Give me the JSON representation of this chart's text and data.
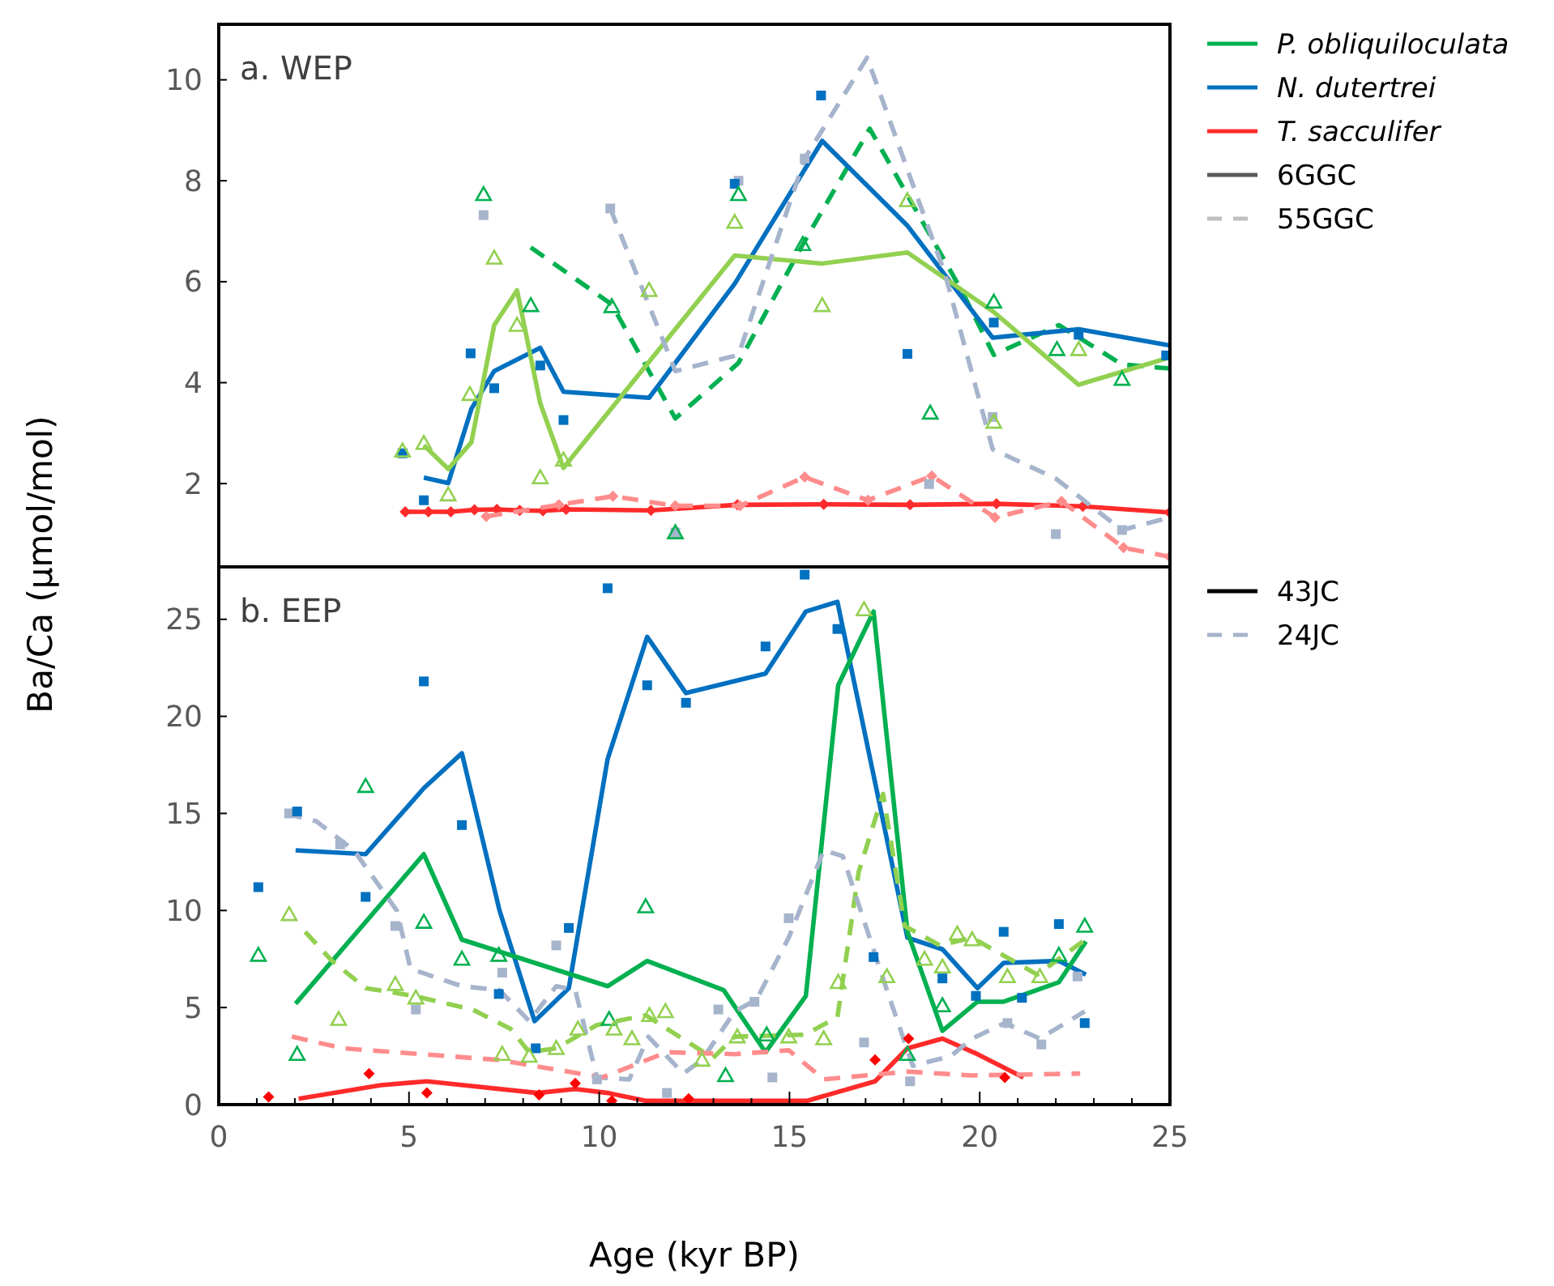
{
  "chart_data": [
    {
      "type": "line",
      "title": "a. WEP",
      "ylabel": "Ba/Ca (µmol/mol)",
      "xlim": [
        0,
        25
      ],
      "ylim": [
        0.35,
        11.1
      ],
      "yticks": [
        2,
        4,
        6,
        8,
        10
      ],
      "tick_labels": "y",
      "legend": "right",
      "annotations": [
        "6GGC",
        "55GGC"
      ],
      "series": [
        {
          "name": "P. obliquiloculata",
          "color": "#00b050",
          "line_style": "dashed",
          "x": [
            8.2,
            10.33,
            12.0,
            13.66,
            15.35,
            17.11,
            19.52,
            20.37,
            22.08,
            23.74,
            24.99
          ],
          "values": [
            6.68,
            5.55,
            3.29,
            4.39,
            6.74,
            9.03,
            5.83,
            4.55,
            5.14,
            4.36,
            4.28
          ]
        },
        {
          "name": "N. dutertrei",
          "color": "#0070c0",
          "line_style": "solid",
          "x": [
            5.39,
            6.03,
            6.64,
            7.24,
            8.45,
            9.06,
            11.31,
            13.56,
            15.86,
            18.1,
            20.34,
            22.6,
            24.99
          ],
          "values": [
            2.12,
            2.01,
            3.48,
            4.23,
            4.69,
            3.82,
            3.7,
            5.96,
            8.79,
            7.11,
            4.89,
            5.06,
            4.74
          ]
        },
        {
          "name": "T. sacculifer",
          "color": "#ff2a2a",
          "line_style": "solid",
          "marker": "diamond",
          "x": [
            4.9,
            5.51,
            6.1,
            6.72,
            7.31,
            7.91,
            8.52,
            9.13,
            11.36,
            13.63,
            15.9,
            18.17,
            20.44,
            22.71,
            24.99
          ],
          "values": [
            1.44,
            1.44,
            1.44,
            1.48,
            1.49,
            1.47,
            1.46,
            1.49,
            1.47,
            1.58,
            1.59,
            1.58,
            1.6,
            1.55,
            1.43
          ]
        },
        {
          "color": "#92d050",
          "line_style": "solid",
          "x": [
            5.39,
            6.03,
            6.64,
            7.24,
            7.84,
            8.45,
            9.06,
            13.56,
            15.86,
            18.1,
            20.37,
            22.6,
            24.99
          ],
          "values": [
            2.76,
            2.29,
            2.82,
            5.14,
            5.83,
            3.59,
            2.31,
            6.52,
            6.36,
            6.58,
            5.4,
            3.96,
            4.5
          ]
        },
        {
          "color": "#a6b4cc",
          "line_style": "dashed",
          "x": [
            10.29,
            12.0,
            13.66,
            15.4,
            17.04,
            19.09,
            20.34,
            22.0,
            23.74,
            24.99
          ],
          "values": [
            7.45,
            4.23,
            4.55,
            8.44,
            10.44,
            6.15,
            2.68,
            2.1,
            1.08,
            1.33
          ]
        },
        {
          "color": "#ff8c8c",
          "line_style": "dashed",
          "marker": "diamond",
          "x": [
            7.03,
            8.94,
            10.36,
            12.0,
            13.7,
            15.4,
            17.06,
            18.74,
            20.4,
            22.15,
            23.78,
            24.99
          ],
          "values": [
            1.35,
            1.58,
            1.75,
            1.56,
            1.56,
            2.13,
            1.67,
            2.15,
            1.33,
            1.65,
            0.73,
            0.55
          ]
        },
        {
          "type": "scatter",
          "color": "#a6b4cc",
          "marker": "square",
          "x": [
            6.96,
            10.29,
            12.0,
            13.66,
            15.4,
            18.67,
            20.34,
            22.0,
            23.74
          ],
          "values": [
            7.32,
            7.45,
            1.03,
            8.0,
            8.44,
            1.99,
            3.32,
            1.0,
            1.08
          ]
        },
        {
          "type": "scatter",
          "color": "#0070c0",
          "marker": "square",
          "x": [
            4.83,
            5.39,
            6.62,
            7.24,
            8.45,
            9.06,
            13.56,
            15.83,
            18.1,
            20.37,
            22.6,
            24.9
          ],
          "values": [
            2.6,
            1.67,
            4.58,
            3.89,
            4.34,
            3.26,
            7.94,
            9.69,
            4.57,
            5.19,
            4.95,
            4.54
          ]
        },
        {
          "type": "scatter",
          "color": "#92d050",
          "marker": "triangle",
          "x": [
            4.83,
            5.39,
            6.03,
            6.6,
            7.24,
            7.84,
            8.45,
            9.06,
            11.31,
            13.56,
            15.86,
            18.1,
            20.37,
            22.6
          ],
          "values": [
            2.65,
            2.8,
            1.78,
            3.77,
            6.47,
            5.14,
            2.12,
            2.47,
            5.83,
            7.18,
            5.53,
            7.61,
            3.22,
            4.66
          ]
        },
        {
          "type": "scatter",
          "color": "#00b050",
          "marker": "triangle",
          "x": [
            6.96,
            8.2,
            10.33,
            12.0,
            13.66,
            15.35,
            18.7,
            20.37,
            22.03,
            23.74
          ],
          "values": [
            7.73,
            5.53,
            5.51,
            1.03,
            7.73,
            6.74,
            3.4,
            5.6,
            4.66,
            4.07
          ]
        }
      ]
    },
    {
      "type": "line",
      "title": "b. EEP",
      "xlabel": "Age (kyr BP)",
      "xlim": [
        0,
        25
      ],
      "xticks": [
        0,
        {
          "value": 1,
          "label": null
        },
        {
          "value": 2,
          "label": null
        },
        {
          "value": 3,
          "label": null
        },
        {
          "value": 4,
          "label": null
        },
        5,
        {
          "value": 6,
          "label": null
        },
        {
          "value": 7,
          "label": null
        },
        {
          "value": 8,
          "label": null
        },
        {
          "value": 9,
          "label": null
        },
        10,
        {
          "value": 11,
          "label": null
        },
        {
          "value": 12,
          "label": null
        },
        {
          "value": 13,
          "label": null
        },
        {
          "value": 14,
          "label": null
        },
        15,
        {
          "value": 16,
          "label": null
        },
        {
          "value": 17,
          "label": null
        },
        {
          "value": 18,
          "label": null
        },
        {
          "value": 19,
          "label": null
        },
        20,
        {
          "value": 21,
          "label": null
        },
        {
          "value": 22,
          "label": null
        },
        {
          "value": 23,
          "label": null
        },
        {
          "value": 24,
          "label": null
        },
        25
      ],
      "ylim": [
        0,
        27.7
      ],
      "yticks": [
        0,
        5,
        10,
        15,
        20,
        25
      ],
      "annotations": [
        "43JC",
        "24JC"
      ],
      "series": [
        {
          "color": "#0070c0",
          "line_style": "solid",
          "x": [
            2.02,
            3.86,
            5.39,
            6.39,
            7.38,
            8.3,
            9.2,
            10.22,
            11.26,
            12.28,
            14.37,
            15.43,
            16.26,
            18.1,
            19.02,
            19.94,
            20.63,
            22.08,
            22.79
          ],
          "values": [
            13.1,
            12.9,
            16.3,
            18.1,
            10.0,
            4.3,
            6.0,
            17.8,
            24.1,
            21.2,
            22.2,
            25.4,
            25.9,
            8.6,
            8.0,
            6.0,
            7.3,
            7.4,
            6.7
          ]
        },
        {
          "color": "#00b050",
          "line_style": "solid",
          "x": [
            2.02,
            5.39,
            6.39,
            10.22,
            11.26,
            13.27,
            14.37,
            15.43,
            16.28,
            17.21,
            18.1,
            19.02,
            19.94,
            20.63,
            22.08,
            22.79
          ],
          "values": [
            5.2,
            12.9,
            8.5,
            6.1,
            7.4,
            5.9,
            2.7,
            5.6,
            21.6,
            25.4,
            8.9,
            3.8,
            5.3,
            5.3,
            6.3,
            8.4
          ]
        },
        {
          "color": "#ff2a2a",
          "line_style": "solid",
          "x": [
            2.1,
            4.26,
            5.47,
            8.38,
            9.37,
            10.22,
            11.22,
            12.35,
            15.47,
            17.25,
            18.1,
            19.02,
            19.94,
            21.15
          ],
          "values": [
            0.3,
            1.0,
            1.2,
            0.6,
            0.8,
            0.6,
            0.2,
            0.2,
            0.2,
            1.2,
            2.9,
            3.4,
            2.6,
            1.4
          ]
        },
        {
          "color": "#92d050",
          "line_style": "dashed",
          "x": [
            2.27,
            2.98,
            3.86,
            5.11,
            6.67,
            7.67,
            8.16,
            8.87,
            9.94,
            11.22,
            12.99,
            13.56,
            15.4,
            16.26,
            16.82,
            17.46,
            18.03,
            18.95,
            19.8,
            21.51,
            22.71
          ],
          "values": [
            8.9,
            7.4,
            6.0,
            5.6,
            4.9,
            3.9,
            2.7,
            2.9,
            4.1,
            4.6,
            2.4,
            3.5,
            3.6,
            4.5,
            12.0,
            16.0,
            9.2,
            8.2,
            8.6,
            6.7,
            8.4
          ]
        },
        {
          "color": "#a6b4cc",
          "line_style": "dashed",
          "x": [
            1.77,
            2.56,
            3.55,
            4.68,
            5.04,
            6.39,
            7.38,
            8.16,
            8.87,
            9.37,
            9.94,
            10.79,
            11.29,
            12.21,
            12.7,
            13.56,
            14.13,
            14.98,
            15.9,
            16.4,
            17.56,
            18.24,
            19.24,
            19.8,
            20.66,
            21.58,
            22.76
          ],
          "values": [
            15.0,
            14.6,
            13.1,
            10.0,
            7.0,
            6.1,
            5.9,
            4.3,
            6.1,
            5.9,
            1.4,
            1.3,
            3.5,
            1.6,
            2.3,
            4.8,
            5.4,
            8.6,
            13.1,
            12.8,
            5.9,
            2.0,
            2.5,
            3.4,
            4.2,
            3.4,
            4.8
          ]
        },
        {
          "color": "#ff8c8c",
          "line_style": "dashed",
          "x": [
            1.92,
            3.27,
            7.36,
            10.08,
            11.78,
            13.56,
            14.98,
            15.9,
            18.1,
            19.8,
            22.64
          ],
          "values": [
            3.5,
            2.9,
            2.3,
            1.4,
            2.7,
            2.6,
            2.8,
            1.3,
            1.7,
            1.5,
            1.6
          ]
        },
        {
          "type": "scatter",
          "color": "#a6b4cc",
          "marker": "square",
          "x": [
            1.85,
            3.19,
            4.64,
            5.18,
            7.45,
            8.87,
            9.94,
            11.78,
            13.13,
            14.08,
            14.55,
            14.98,
            16.96,
            18.17,
            20.73,
            21.62,
            22.57
          ],
          "values": [
            15.0,
            13.4,
            9.2,
            4.9,
            6.8,
            8.2,
            1.3,
            0.6,
            4.9,
            5.3,
            1.4,
            9.6,
            3.2,
            1.2,
            4.2,
            3.1,
            6.6
          ]
        },
        {
          "type": "scatter",
          "color": "#0070c0",
          "marker": "square",
          "x": [
            1.04,
            2.06,
            3.86,
            5.39,
            6.39,
            7.36,
            8.33,
            9.2,
            10.22,
            11.26,
            12.28,
            14.37,
            15.4,
            16.26,
            17.21,
            19.02,
            19.9,
            20.63,
            21.11,
            22.08,
            22.76
          ],
          "values": [
            11.2,
            15.1,
            10.7,
            21.8,
            14.4,
            5.7,
            2.9,
            9.1,
            26.6,
            21.6,
            20.7,
            23.6,
            27.3,
            24.5,
            7.6,
            6.5,
            5.6,
            8.9,
            5.5,
            9.3,
            4.2
          ]
        },
        {
          "type": "scatter",
          "color": "#00b050",
          "marker": "triangle",
          "x": [
            1.04,
            2.06,
            3.86,
            5.39,
            6.39,
            7.36,
            10.26,
            11.22,
            13.32,
            14.4,
            18.1,
            19.02,
            22.08,
            22.76
          ],
          "values": [
            7.7,
            2.6,
            16.4,
            9.4,
            7.5,
            7.7,
            4.4,
            10.2,
            1.5,
            3.6,
            2.6,
            5.1,
            7.7,
            9.2
          ]
        },
        {
          "type": "scatter",
          "color": "#92d050",
          "marker": "triangle",
          "x": [
            1.85,
            3.15,
            4.64,
            5.18,
            7.45,
            8.16,
            8.87,
            9.44,
            10.39,
            10.86,
            11.32,
            11.74,
            12.7,
            13.63,
            14.98,
            15.9,
            16.28,
            16.96,
            17.56,
            18.55,
            19.02,
            19.41,
            19.8,
            20.73,
            21.58
          ],
          "values": [
            9.8,
            4.4,
            6.2,
            5.5,
            2.6,
            2.5,
            2.9,
            3.9,
            3.9,
            3.4,
            4.6,
            4.8,
            2.3,
            3.5,
            3.5,
            3.4,
            6.3,
            25.5,
            6.6,
            7.5,
            7.1,
            8.8,
            8.5,
            6.6,
            6.6
          ]
        },
        {
          "type": "scatter",
          "color": "#ff0000",
          "marker": "diamond",
          "x": [
            1.31,
            3.95,
            5.47,
            8.42,
            9.37,
            10.33,
            12.35,
            17.25,
            18.13,
            20.66
          ],
          "values": [
            0.4,
            1.6,
            0.6,
            0.5,
            1.1,
            0.2,
            0.3,
            2.3,
            3.4,
            1.4
          ]
        }
      ]
    }
  ]
}
